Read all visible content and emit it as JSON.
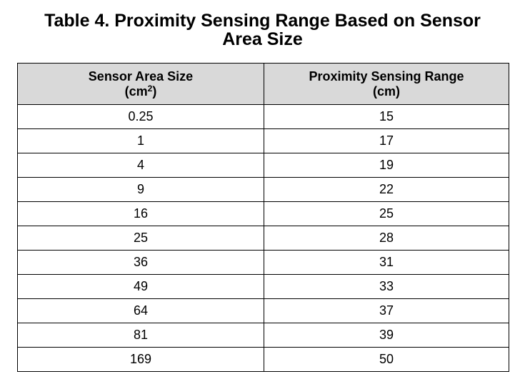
{
  "caption": {
    "line1": "Table 4. Proximity Sensing Range Based on Sensor",
    "line2": "Area Size"
  },
  "table": {
    "headers": [
      {
        "line1": "Sensor Area Size",
        "line2_prefix": "(cm",
        "line2_sup": "2",
        "line2_suffix": ")"
      },
      {
        "line1": "Proximity Sensing Range",
        "line2_prefix": "(cm)",
        "line2_sup": "",
        "line2_suffix": ""
      }
    ],
    "rows": [
      [
        "0.25",
        "15"
      ],
      [
        "1",
        "17"
      ],
      [
        "4",
        "19"
      ],
      [
        "9",
        "22"
      ],
      [
        "16",
        "25"
      ],
      [
        "25",
        "28"
      ],
      [
        "36",
        "31"
      ],
      [
        "49",
        "33"
      ],
      [
        "64",
        "37"
      ],
      [
        "81",
        "39"
      ],
      [
        "169",
        "50"
      ]
    ]
  },
  "colors": {
    "header_background": "#d9d9d9",
    "border": "#000000",
    "text": "#000000"
  }
}
